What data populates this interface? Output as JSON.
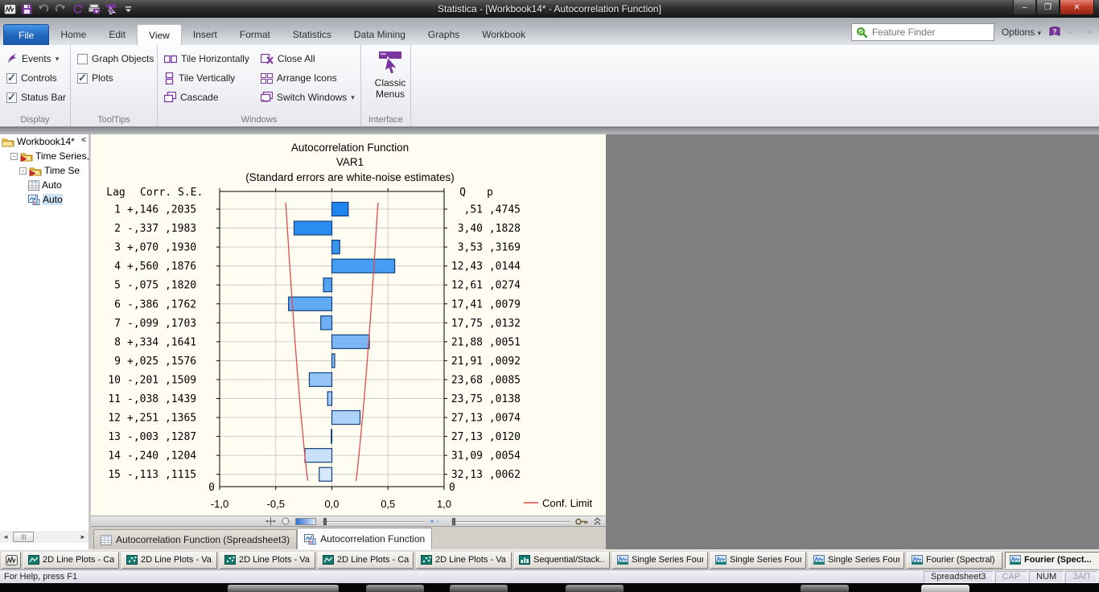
{
  "title_bar": {
    "title": "Statistica - [Workbook14* - Autocorrelation Function]",
    "qat_icons": [
      "statistica-logo",
      "save-icon",
      "undo-icon",
      "redo-icon",
      "refresh-icon",
      "print-icon",
      "classic-menus-small-icon",
      "qat-dropdown-icon"
    ],
    "window_controls": {
      "minimize": "–",
      "restore": "❐",
      "close": "✕"
    }
  },
  "ribbon": {
    "tabs": [
      "File",
      "Home",
      "Edit",
      "View",
      "Insert",
      "Format",
      "Statistics",
      "Data Mining",
      "Graphs",
      "Workbook"
    ],
    "active_tab": "View",
    "search": {
      "placeholder": "Feature Finder",
      "icon": "search-icon"
    },
    "options_label": "Options",
    "groups": {
      "display": {
        "label": "Display",
        "events": "Events",
        "controls": "Controls",
        "status_bar": "Status Bar",
        "controls_checked": true,
        "status_bar_checked": true
      },
      "tooltips": {
        "label": "ToolTips",
        "graph_objects": "Graph Objects",
        "plots": "Plots",
        "graph_objects_checked": false,
        "plots_checked": true
      },
      "windows": {
        "label": "Windows",
        "tile_horizontally": "Tile Horizontally",
        "tile_vertically": "Tile Vertically",
        "cascade": "Cascade",
        "close_all": "Close All",
        "arrange_icons": "Arrange Icons",
        "switch_windows": "Switch Windows"
      },
      "interface": {
        "label": "Interface",
        "classic_menus_line1": "Classic",
        "classic_menus_line2": "Menus"
      }
    }
  },
  "tree": {
    "collapse_label": "<",
    "items": [
      {
        "label": "Workbook14*",
        "icon": "folder-open-icon",
        "depth": 0,
        "expander": "",
        "selected": false
      },
      {
        "label": "Time Series,",
        "icon": "folder-arrow-icon",
        "depth": 1,
        "expander": "-",
        "selected": false
      },
      {
        "label": "Time Se",
        "icon": "folder-arrow-icon",
        "depth": 2,
        "expander": "-",
        "selected": false
      },
      {
        "label": "Auto",
        "icon": "spreadsheet-icon",
        "depth": 3,
        "expander": "",
        "selected": false
      },
      {
        "label": "Auto",
        "icon": "graph-icon",
        "depth": 3,
        "expander": "",
        "selected": true
      }
    ]
  },
  "chart_data": {
    "type": "bar",
    "orientation": "horizontal",
    "title": "Autocorrelation Function",
    "subtitle": "VAR1",
    "note": "(Standard errors are white-noise estimates)",
    "left_headers": {
      "lag": "Lag",
      "corr_se": "Corr. S.E."
    },
    "right_headers": {
      "q": "Q",
      "p": "p"
    },
    "origin_label": "0",
    "x_ticks": {
      "labels": [
        "-1,0",
        "-0,5",
        "0,0",
        "0,5",
        "1,0"
      ],
      "values": [
        -1,
        -0.5,
        0,
        0.5,
        1
      ]
    },
    "xlim": [
      -1,
      1
    ],
    "grid": true,
    "legend": [
      {
        "label": "Conf. Limit",
        "color": "#e14b4b"
      }
    ],
    "rows": [
      {
        "lag": "1",
        "corr_label": "+,146",
        "se_label": ",2035",
        "corr": 0.146,
        "se": 0.2035,
        "q": ",51",
        "p": ",4745"
      },
      {
        "lag": "2",
        "corr_label": "-,337",
        "se_label": ",1983",
        "corr": -0.337,
        "se": 0.1983,
        "q": "3,40",
        "p": ",1828"
      },
      {
        "lag": "3",
        "corr_label": "+,070",
        "se_label": ",1930",
        "corr": 0.07,
        "se": 0.193,
        "q": "3,53",
        "p": ",3169"
      },
      {
        "lag": "4",
        "corr_label": "+,560",
        "se_label": ",1876",
        "corr": 0.56,
        "se": 0.1876,
        "q": "12,43",
        "p": ",0144"
      },
      {
        "lag": "5",
        "corr_label": "-,075",
        "se_label": ",1820",
        "corr": -0.075,
        "se": 0.182,
        "q": "12,61",
        "p": ",0274"
      },
      {
        "lag": "6",
        "corr_label": "-,386",
        "se_label": ",1762",
        "corr": -0.386,
        "se": 0.1762,
        "q": "17,41",
        "p": ",0079"
      },
      {
        "lag": "7",
        "corr_label": "-,099",
        "se_label": ",1703",
        "corr": -0.099,
        "se": 0.1703,
        "q": "17,75",
        "p": ",0132"
      },
      {
        "lag": "8",
        "corr_label": "+,334",
        "se_label": ",1641",
        "corr": 0.334,
        "se": 0.1641,
        "q": "21,88",
        "p": ",0051"
      },
      {
        "lag": "9",
        "corr_label": "+,025",
        "se_label": ",1576",
        "corr": 0.025,
        "se": 0.1576,
        "q": "21,91",
        "p": ",0092"
      },
      {
        "lag": "10",
        "corr_label": "-,201",
        "se_label": ",1509",
        "corr": -0.201,
        "se": 0.1509,
        "q": "23,68",
        "p": ",0085"
      },
      {
        "lag": "11",
        "corr_label": "-,038",
        "se_label": ",1439",
        "corr": -0.038,
        "se": 0.1439,
        "q": "23,75",
        "p": ",0138"
      },
      {
        "lag": "12",
        "corr_label": "+,251",
        "se_label": ",1365",
        "corr": 0.251,
        "se": 0.1365,
        "q": "27,13",
        "p": ",0074"
      },
      {
        "lag": "13",
        "corr_label": "-,003",
        "se_label": ",1287",
        "corr": -0.003,
        "se": 0.1287,
        "q": "27,13",
        "p": ",0120"
      },
      {
        "lag": "14",
        "corr_label": "-,240",
        "se_label": ",1204",
        "corr": -0.24,
        "se": 0.1204,
        "q": "31,09",
        "p": ",0054"
      },
      {
        "lag": "15",
        "corr_label": "-,113",
        "se_label": ",1115",
        "corr": -0.113,
        "se": 0.1115,
        "q": "32,13",
        "p": ",0062"
      }
    ],
    "colors": {
      "bar_start": "#1f86ef",
      "bar_end": "#d6e7fc",
      "bar_border": "#12407e",
      "conf_line": "#e14b4b",
      "grid": "#cccccc",
      "axis": "#000000",
      "background": "#fffdf2"
    }
  },
  "workbook_tabs": [
    {
      "label": "Autocorrelation Function (Spreadsheet3)",
      "icon": "spreadsheet-icon",
      "active": false
    },
    {
      "label": "Autocorrelation Function",
      "icon": "graph-icon",
      "active": true
    }
  ],
  "window_bar": {
    "buttons": [
      {
        "label": "",
        "icon": "statistica-logo",
        "compact": true,
        "active": false
      },
      {
        "label": "2D Line Plots - Ca...",
        "icon": "line-plot-icon",
        "active": false
      },
      {
        "label": "2D Line Plots - Va...",
        "icon": "scatter-plot-icon",
        "active": false
      },
      {
        "label": "2D Line Plots - Va...",
        "icon": "scatter-plot-icon",
        "active": false
      },
      {
        "label": "2D Line Plots - Ca...",
        "icon": "line-plot-icon",
        "active": false
      },
      {
        "label": "2D Line Plots - Va...",
        "icon": "scatter-plot-icon",
        "active": false
      },
      {
        "label": "Sequential/Stack...",
        "icon": "stacked-plot-icon",
        "active": false
      },
      {
        "label": "Single Series Four...",
        "icon": "fourier-plot-icon",
        "active": false
      },
      {
        "label": "Single Series Four...",
        "icon": "fourier-plot-icon",
        "active": false
      },
      {
        "label": "Single Series Four...",
        "icon": "fourier-plot-icon",
        "active": false
      },
      {
        "label": "Fourier (Spectral) ...",
        "icon": "fourier-plot-icon",
        "active": false
      },
      {
        "label": "Fourier (Spect...",
        "icon": "fourier-plot-icon",
        "active": true
      }
    ]
  },
  "status_bar": {
    "help_text": "For Help, press F1",
    "panels": [
      {
        "label": "Spreadsheet3",
        "dim": false
      },
      {
        "label": "CAP",
        "dim": true
      },
      {
        "label": "NUM",
        "dim": false
      },
      {
        "label": "ЗАП",
        "dim": true
      }
    ]
  }
}
